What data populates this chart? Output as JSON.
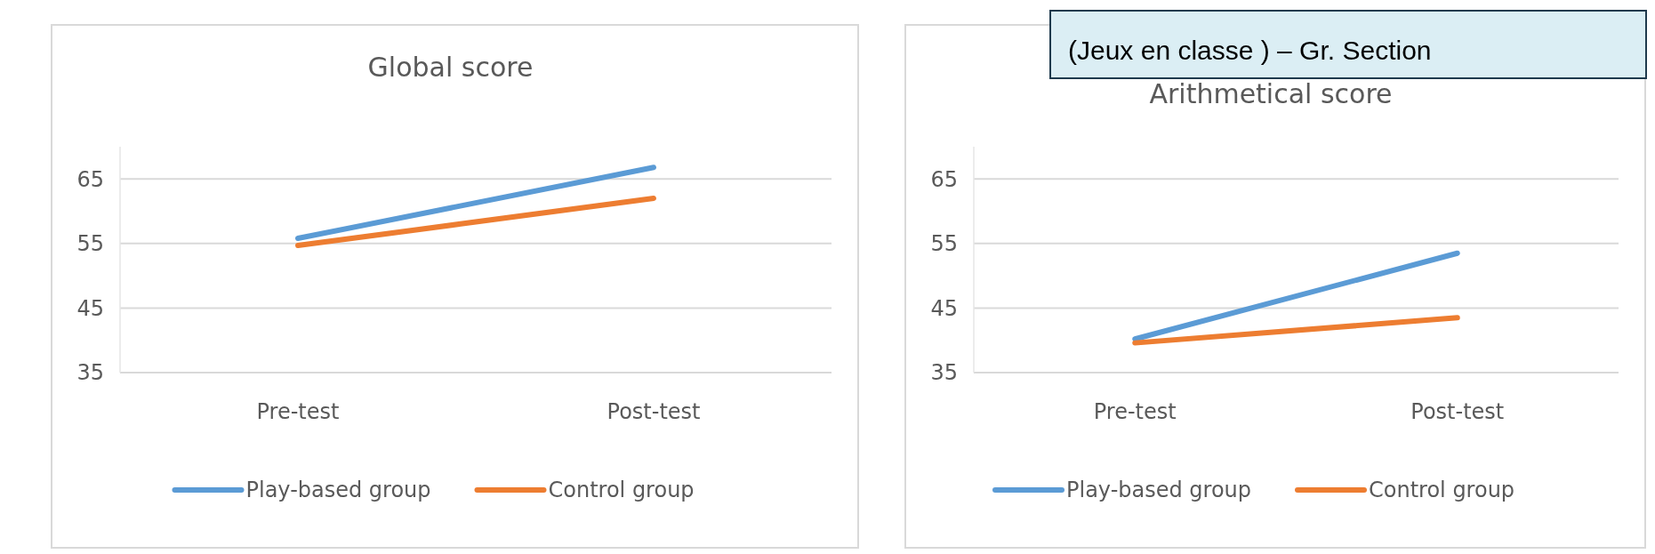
{
  "chart_data": [
    {
      "type": "line",
      "title": "Global score",
      "categories": [
        "Pre-test",
        "Post-test"
      ],
      "series": [
        {
          "name": "Play-based group",
          "color": "#5b9bd5",
          "values": [
            55.8,
            66.8
          ]
        },
        {
          "name": "Control group",
          "color": "#ed7d31",
          "values": [
            54.7,
            62.0
          ]
        }
      ],
      "ylim": [
        35,
        70
      ],
      "yticks": [
        35,
        45,
        55,
        65
      ],
      "grid": "y",
      "legend": "bottom",
      "marker": "none",
      "line_style": "solid"
    },
    {
      "type": "line",
      "title": "Arithmetical score",
      "annotations": [
        "(Jeux en classe ) – Gr. Section"
      ],
      "categories": [
        "Pre-test",
        "Post-test"
      ],
      "series": [
        {
          "name": "Play-based group",
          "color": "#5b9bd5",
          "values": [
            40.2,
            53.5
          ]
        },
        {
          "name": "Control group",
          "color": "#ed7d31",
          "values": [
            39.6,
            43.5
          ]
        }
      ],
      "ylim": [
        35,
        70
      ],
      "yticks": [
        35,
        45,
        55,
        65
      ],
      "grid": "y",
      "legend": "bottom",
      "marker": "none",
      "line_style": "solid"
    }
  ]
}
